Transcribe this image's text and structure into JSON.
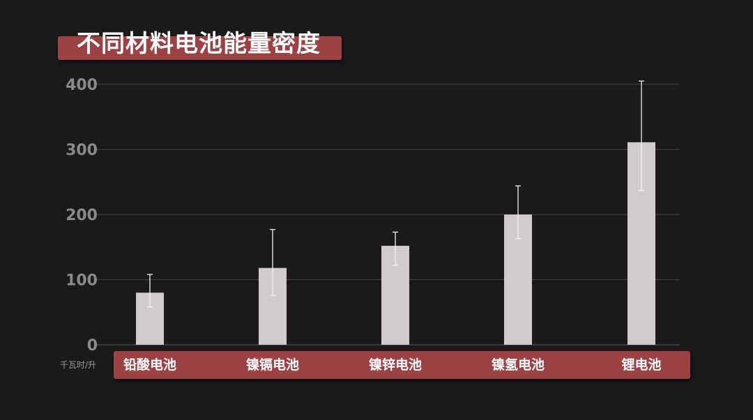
{
  "title": "不同材料电池能量密度",
  "colors": {
    "background": "#1a1a1a",
    "banner": "#9c4245",
    "bar": "#d2cbcb",
    "grid": "#444444",
    "tick": "#8a8a8a"
  },
  "chart_data": {
    "type": "bar",
    "title": "不同材料电池能量密度",
    "unit_label": "千瓦时/升",
    "categories": [
      "铅酸电池",
      "镍镉电池",
      "镍锌电池",
      "镍氢电池",
      "锂电池"
    ],
    "values": [
      80,
      118,
      152,
      200,
      311
    ],
    "error_low": [
      58,
      76,
      122,
      163,
      237
    ],
    "error_high": [
      108,
      177,
      173,
      244,
      405
    ],
    "ylim": [
      0,
      400
    ],
    "yticks": [
      0,
      100,
      200,
      300,
      400
    ],
    "grid": true
  }
}
